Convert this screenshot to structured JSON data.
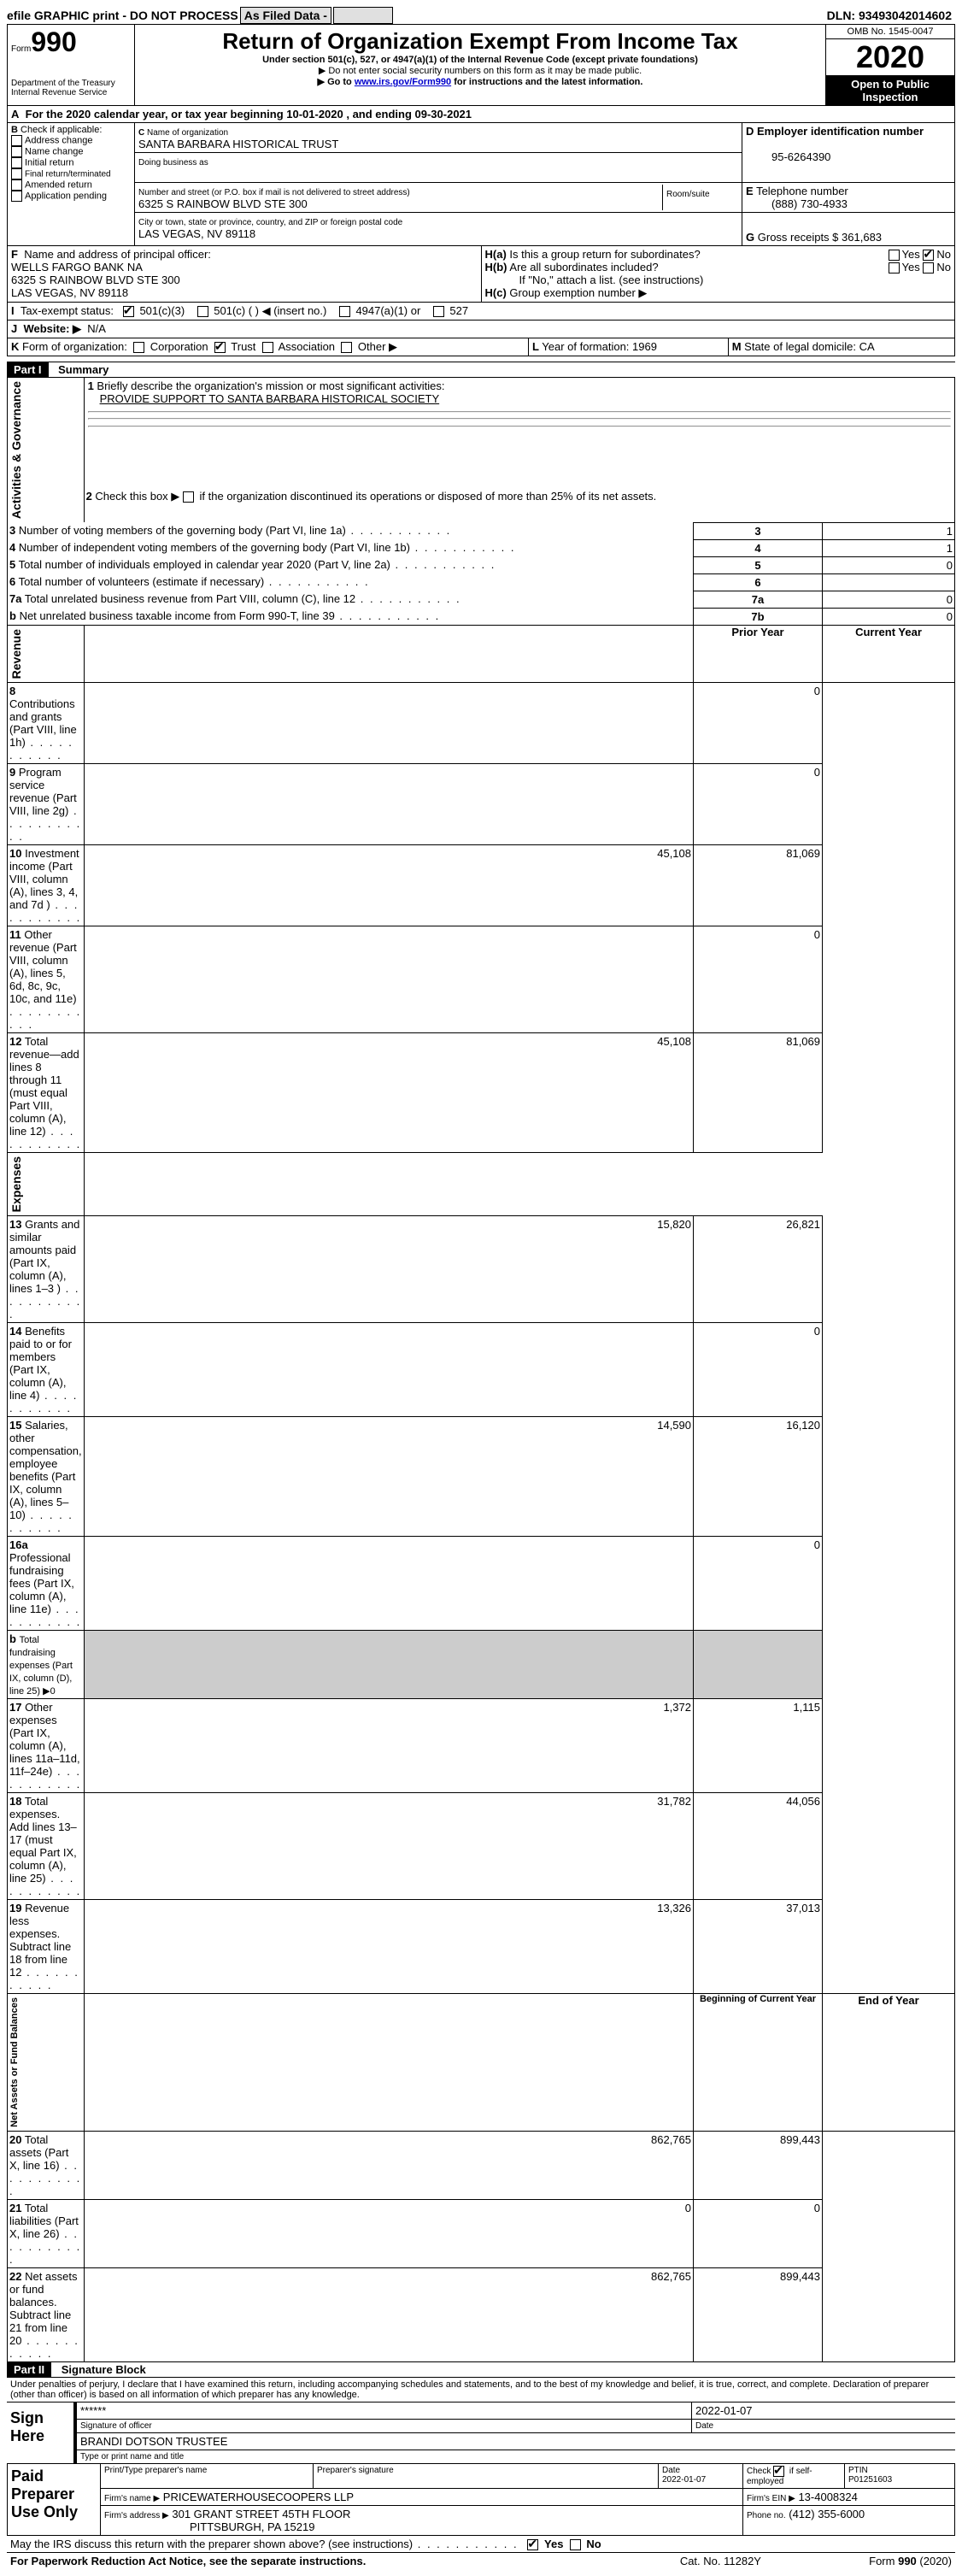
{
  "topbar": {
    "efile": "efile GRAPHIC print - DO NOT PROCESS",
    "asfiled": "As Filed Data -",
    "dln_label": "DLN:",
    "dln": "93493042014602"
  },
  "header": {
    "form_prefix": "Form",
    "form_no": "990",
    "dept1": "Department of the Treasury",
    "dept2": "Internal Revenue Service",
    "title": "Return of Organization Exempt From Income Tax",
    "subtitle": "Under section 501(c), 527, or 4947(a)(1) of the Internal Revenue Code (except private foundations)",
    "note1": "▶ Do not enter social security numbers on this form as it may be made public.",
    "note2": "▶ Go to www.irs.gov/Form990 for instructions and the latest information.",
    "omb_label": "OMB No. 1545-0047",
    "year": "2020",
    "open": "Open to Public Inspection"
  },
  "A": {
    "text": "For the 2020 calendar year, or tax year beginning 10-01-2020   , and ending 09-30-2021"
  },
  "B": {
    "label": "Check if applicable:",
    "items": [
      "Address change",
      "Name change",
      "Initial return",
      "Final return/terminated",
      "Amended return",
      "Application pending"
    ]
  },
  "C": {
    "label": "Name of organization",
    "name": "SANTA BARBARA HISTORICAL TRUST",
    "dba_label": "Doing business as",
    "street_label": "Number and street (or P.O. box if mail is not delivered to street address)",
    "room_label": "Room/suite",
    "street": "6325 S RAINBOW BLVD STE 300",
    "city_label": "City or town, state or province, country, and ZIP or foreign postal code",
    "city": "LAS VEGAS, NV  89118"
  },
  "D": {
    "label": "Employer identification number",
    "value": "95-6264390"
  },
  "E": {
    "label": "Telephone number",
    "value": "(888) 730-4933"
  },
  "G": {
    "label": "Gross receipts $",
    "value": "361,683"
  },
  "F": {
    "label": "Name and address of principal officer:",
    "l1": "WELLS FARGO BANK NA",
    "l2": "6325 S RAINBOW BLVD STE 300",
    "l3": "LAS VEGAS, NV  89118"
  },
  "H": {
    "a": "Is this a group return for subordinates?",
    "b": "Are all subordinates included?",
    "b_note": "If \"No,\" attach a list. (see instructions)",
    "c": "Group exemption number ▶",
    "yes": "Yes",
    "no": "No"
  },
  "I": {
    "label": "Tax-exempt status:",
    "o1": "501(c)(3)",
    "o2": "501(c) (  ) ◀ (insert no.)",
    "o3": "4947(a)(1) or",
    "o4": "527"
  },
  "J": {
    "label": "Website: ▶",
    "value": "N/A"
  },
  "K": {
    "label": "Form of organization:",
    "opts": [
      "Corporation",
      "Trust",
      "Association",
      "Other ▶"
    ]
  },
  "L": {
    "label": "Year of formation:",
    "value": "1969"
  },
  "M": {
    "label": "State of legal domicile:",
    "value": "CA"
  },
  "part1": {
    "hdr": "Part I",
    "title": "Summary",
    "line1_label": "Briefly describe the organization's mission or most significant activities:",
    "line1_value": "PROVIDE SUPPORT TO SANTA BARBARA HISTORICAL SOCIETY",
    "line2": "Check this box ▶   if the organization discontinued its operations or disposed of more than 25% of its net assets.",
    "rows_gov": [
      {
        "n": "3",
        "t": "Number of voting members of the governing body (Part VI, line 1a)",
        "k": "3",
        "v": "1"
      },
      {
        "n": "4",
        "t": "Number of independent voting members of the governing body (Part VI, line 1b)",
        "k": "4",
        "v": "1"
      },
      {
        "n": "5",
        "t": "Total number of individuals employed in calendar year 2020 (Part V, line 2a)",
        "k": "5",
        "v": "0"
      },
      {
        "n": "6",
        "t": "Total number of volunteers (estimate if necessary)",
        "k": "6",
        "v": ""
      },
      {
        "n": "7a",
        "t": "Total unrelated business revenue from Part VIII, column (C), line 12",
        "k": "7a",
        "v": "0"
      },
      {
        "n": "b",
        "t": "Net unrelated business taxable income from Form 990-T, line 39",
        "k": "7b",
        "v": "0"
      }
    ],
    "col_prior": "Prior Year",
    "col_curr": "Current Year",
    "rev": [
      {
        "n": "8",
        "t": "Contributions and grants (Part VIII, line 1h)",
        "p": "",
        "c": "0"
      },
      {
        "n": "9",
        "t": "Program service revenue (Part VIII, line 2g)",
        "p": "",
        "c": "0"
      },
      {
        "n": "10",
        "t": "Investment income (Part VIII, column (A), lines 3, 4, and 7d )",
        "p": "45,108",
        "c": "81,069"
      },
      {
        "n": "11",
        "t": "Other revenue (Part VIII, column (A), lines 5, 6d, 8c, 9c, 10c, and 11e)",
        "p": "",
        "c": "0"
      },
      {
        "n": "12",
        "t": "Total revenue—add lines 8 through 11 (must equal Part VIII, column (A), line 12)",
        "p": "45,108",
        "c": "81,069"
      }
    ],
    "exp": [
      {
        "n": "13",
        "t": "Grants and similar amounts paid (Part IX, column (A), lines 1–3 )",
        "p": "15,820",
        "c": "26,821"
      },
      {
        "n": "14",
        "t": "Benefits paid to or for members (Part IX, column (A), line 4)",
        "p": "",
        "c": "0"
      },
      {
        "n": "15",
        "t": "Salaries, other compensation, employee benefits (Part IX, column (A), lines 5–10)",
        "p": "14,590",
        "c": "16,120"
      },
      {
        "n": "16a",
        "t": "Professional fundraising fees (Part IX, column (A), line 11e)",
        "p": "",
        "c": "0"
      },
      {
        "n": "b",
        "t": "Total fundraising expenses (Part IX, column (D), line 25) ▶0",
        "p": null,
        "c": null
      },
      {
        "n": "17",
        "t": "Other expenses (Part IX, column (A), lines 11a–11d, 11f–24e)",
        "p": "1,372",
        "c": "1,115"
      },
      {
        "n": "18",
        "t": "Total expenses. Add lines 13–17 (must equal Part IX, column (A), line 25)",
        "p": "31,782",
        "c": "44,056"
      },
      {
        "n": "19",
        "t": "Revenue less expenses. Subtract line 18 from line 12",
        "p": "13,326",
        "c": "37,013"
      }
    ],
    "col_beg": "Beginning of Current Year",
    "col_end": "End of Year",
    "net": [
      {
        "n": "20",
        "t": "Total assets (Part X, line 16)",
        "p": "862,765",
        "c": "899,443"
      },
      {
        "n": "21",
        "t": "Total liabilities (Part X, line 26)",
        "p": "0",
        "c": "0"
      },
      {
        "n": "22",
        "t": "Net assets or fund balances. Subtract line 21 from line 20",
        "p": "862,765",
        "c": "899,443"
      }
    ],
    "vlabels": {
      "gov": "Activities & Governance",
      "rev": "Revenue",
      "exp": "Expenses",
      "net": "Net Assets or Fund Balances"
    }
  },
  "part2": {
    "hdr": "Part II",
    "title": "Signature Block",
    "perjury": "Under penalties of perjury, I declare that I have examined this return, including accompanying schedules and statements, and to the best of my knowledge and belief, it is true, correct, and complete. Declaration of preparer (other than officer) is based on all information of which preparer has any knowledge.",
    "sign": "Sign Here",
    "stars": "******",
    "sig_of": "Signature of officer",
    "date_lbl": "Date",
    "date": "2022-01-07",
    "name": "BRANDI DOTSON TRUSTEE",
    "name_lbl": "Type or print name and title",
    "paid": "Paid Preparer Use Only",
    "prep_name_lbl": "Print/Type preparer's name",
    "prep_sig_lbl": "Preparer's signature",
    "prep_date": "2022-01-07",
    "check_lbl": "Check",
    "self_emp": "if self-employed",
    "ptin_lbl": "PTIN",
    "ptin": "P01251603",
    "firm_name_lbl": "Firm's name   ▶",
    "firm_name": "PRICEWATERHOUSECOOPERS LLP",
    "firm_ein_lbl": "Firm's EIN ▶",
    "firm_ein": "13-4008324",
    "firm_addr_lbl": "Firm's address ▶",
    "firm_addr1": "301 GRANT STREET 45TH FLOOR",
    "firm_addr2": "PITTSBURGH, PA  15219",
    "phone_lbl": "Phone no.",
    "phone": "(412) 355-6000",
    "discuss": "May the IRS discuss this return with the preparer shown above? (see instructions)",
    "paperwork": "For Paperwork Reduction Act Notice, see the separate instructions.",
    "cat": "Cat. No. 11282Y",
    "form_foot": "Form 990 (2020)"
  }
}
